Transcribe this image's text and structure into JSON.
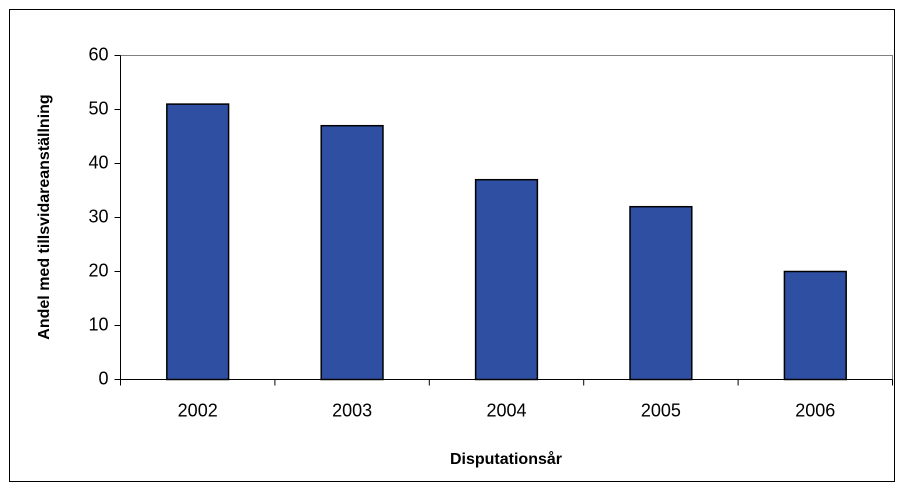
{
  "chart_data": {
    "type": "bar",
    "x_label": "Disputationsår",
    "y_label": "Andel med tillsvidareanställning",
    "categories": [
      "2002",
      "2003",
      "2004",
      "2005",
      "2006"
    ],
    "values": [
      51,
      47,
      37,
      32,
      20
    ],
    "color": "#2f50a2",
    "ylim": [
      0,
      60
    ],
    "yticks": [
      0,
      10,
      20,
      30,
      40,
      50,
      60
    ],
    "grid": false
  }
}
